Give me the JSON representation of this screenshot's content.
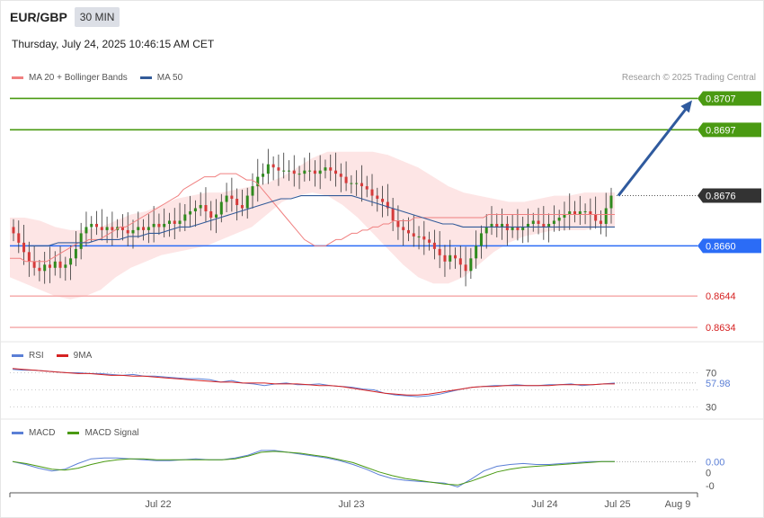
{
  "header": {
    "symbol": "EUR/GBP",
    "timeframe": "30 MIN",
    "datetime": "Thursday, July 24, 2025 10:46:15 AM CET",
    "credit": "Research © 2025 Trading Central"
  },
  "colors": {
    "ma20": "#f08080",
    "bollinger_fill": "#fde2e2",
    "ma50": "#335b99",
    "resistance": "#4a9a12",
    "support_primary": "#2b6cf6",
    "support_secondary": "#f4a5a5",
    "current": "#333333",
    "candle_up": "#2f8a1e",
    "candle_down": "#d43a3a",
    "rsi": "#5b7fd6",
    "rsi_ma": "#d62222",
    "macd": "#5b7fd6",
    "macd_signal": "#4a9a12",
    "arrow": "#2f5a9e"
  },
  "legends": {
    "main": [
      {
        "label": "MA 20 + Bollinger Bands",
        "color": "#f08080"
      },
      {
        "label": "MA 50",
        "color": "#335b99"
      }
    ],
    "rsi": [
      {
        "label": "RSI",
        "color": "#5b7fd6"
      },
      {
        "label": "9MA",
        "color": "#d62222"
      }
    ],
    "macd": [
      {
        "label": "MACD",
        "color": "#5b7fd6"
      },
      {
        "label": "MACD Signal",
        "color": "#4a9a12"
      }
    ]
  },
  "chart_data": [
    {
      "type": "candlestick",
      "symbol": "EUR/GBP",
      "interval": "30 MIN",
      "price_range": [
        0.863,
        0.8712
      ],
      "levels": [
        {
          "value": 0.8707,
          "label": "0.8707",
          "kind": "resistance"
        },
        {
          "value": 0.8697,
          "label": "0.8697",
          "kind": "resistance"
        },
        {
          "value": 0.8676,
          "label": "0.8676",
          "kind": "current"
        },
        {
          "value": 0.866,
          "label": "0.8660",
          "kind": "support-primary"
        },
        {
          "value": 0.8644,
          "label": "0.8644",
          "kind": "support-secondary"
        },
        {
          "value": 0.8634,
          "label": "0.8634",
          "kind": "support-secondary"
        }
      ],
      "projection": {
        "from": 0.8676,
        "to": 0.8707
      },
      "close": [
        0.8664,
        0.8661,
        0.8658,
        0.8655,
        0.8653,
        0.8652,
        0.8654,
        0.8653,
        0.8655,
        0.8653,
        0.8654,
        0.8656,
        0.8659,
        0.8664,
        0.8666,
        0.8667,
        0.8666,
        0.8665,
        0.8666,
        0.8665,
        0.8666,
        0.8665,
        0.8664,
        0.8665,
        0.8666,
        0.8665,
        0.8666,
        0.8667,
        0.8666,
        0.8667,
        0.8668,
        0.8667,
        0.8668,
        0.867,
        0.8671,
        0.8672,
        0.8673,
        0.8671,
        0.8669,
        0.867,
        0.8674,
        0.8676,
        0.8675,
        0.8673,
        0.8672,
        0.8676,
        0.8679,
        0.8682,
        0.8683,
        0.8686,
        0.8685,
        0.8684,
        0.8684,
        0.8684,
        0.8683,
        0.8683,
        0.8684,
        0.8684,
        0.8683,
        0.8684,
        0.8685,
        0.8684,
        0.8683,
        0.8682,
        0.868,
        0.868,
        0.868,
        0.8679,
        0.8678,
        0.8676,
        0.8675,
        0.8674,
        0.8672,
        0.8668,
        0.8666,
        0.8665,
        0.8664,
        0.8663,
        0.8663,
        0.8662,
        0.8661,
        0.8659,
        0.8657,
        0.8655,
        0.8657,
        0.8656,
        0.8654,
        0.8652,
        0.8656,
        0.866,
        0.8664,
        0.8666,
        0.8667,
        0.8666,
        0.8667,
        0.8665,
        0.8666,
        0.8665,
        0.8666,
        0.8667,
        0.8668,
        0.8667,
        0.8666,
        0.8667,
        0.8668,
        0.8669,
        0.867,
        0.8671,
        0.867,
        0.8671,
        0.8671,
        0.867,
        0.8668,
        0.8667,
        0.8672,
        0.8676
      ],
      "ma20": [
        0.8656,
        0.8656,
        0.8656,
        0.8655,
        0.8655,
        0.8655,
        0.8655,
        0.8655,
        0.8656,
        0.8657,
        0.8658,
        0.8659,
        0.866,
        0.8661,
        0.8661,
        0.8662,
        0.8662,
        0.8662,
        0.8663,
        0.8664,
        0.8665,
        0.8666,
        0.8666,
        0.8667,
        0.8668,
        0.8669,
        0.867,
        0.8671,
        0.8672,
        0.8673,
        0.8674,
        0.8675,
        0.8676,
        0.8678,
        0.8679,
        0.868,
        0.8681,
        0.8682,
        0.8682,
        0.8682,
        0.8683,
        0.8683,
        0.8683,
        0.8683,
        0.8682,
        0.8681,
        0.8681,
        0.868,
        0.8678,
        0.8676,
        0.8674,
        0.8672,
        0.867,
        0.8668,
        0.8666,
        0.8664,
        0.8662,
        0.8661,
        0.866,
        0.866,
        0.866,
        0.8661,
        0.8662,
        0.8662,
        0.8663,
        0.8664,
        0.8664,
        0.8665,
        0.8665,
        0.8666,
        0.8666,
        0.8667,
        0.8667,
        0.8668,
        0.8668,
        0.8668,
        0.8668,
        0.8669,
        0.8669,
        0.8669,
        0.8669,
        0.8669,
        0.8669,
        0.8669,
        0.8669,
        0.8669,
        0.8669,
        0.8669,
        0.8669,
        0.8669,
        0.8669,
        0.867,
        0.867,
        0.867,
        0.867,
        0.867,
        0.867,
        0.867,
        0.867,
        0.867,
        0.867,
        0.867,
        0.867,
        0.867,
        0.867,
        0.867,
        0.867,
        0.867,
        0.867,
        0.867,
        0.867,
        0.867,
        0.867,
        0.867,
        0.867,
        0.867
      ],
      "ma50": [
        0.866,
        0.866,
        0.866,
        0.8661,
        0.8661,
        0.8661,
        0.8661,
        0.8662,
        0.8662,
        0.8662,
        0.8663,
        0.8663,
        0.8664,
        0.8664,
        0.8665,
        0.8666,
        0.8666,
        0.8667,
        0.8668,
        0.8669,
        0.867,
        0.8671,
        0.8672,
        0.8673,
        0.8674,
        0.8675,
        0.8675,
        0.8676,
        0.8676,
        0.8676,
        0.8676,
        0.8676,
        0.8676,
        0.8675,
        0.8674,
        0.8673,
        0.8672,
        0.8671,
        0.867,
        0.8669,
        0.8668,
        0.8667,
        0.8667,
        0.8666,
        0.8666,
        0.8666,
        0.8666,
        0.8666,
        0.8666,
        0.8666,
        0.8666,
        0.8666,
        0.8666,
        0.8666,
        0.8666,
        0.8666,
        0.8666,
        0.8666,
        0.8666
      ],
      "bb_upper": [
        0.8669,
        0.8669,
        0.8668,
        0.8666,
        0.8665,
        0.8665,
        0.8666,
        0.8668,
        0.867,
        0.8671,
        0.8673,
        0.8675,
        0.8676,
        0.8677,
        0.8677,
        0.8678,
        0.8679,
        0.868,
        0.8682,
        0.8685,
        0.8688,
        0.869,
        0.869,
        0.869,
        0.869,
        0.8689,
        0.8687,
        0.8685,
        0.8682,
        0.8679,
        0.8677,
        0.8676,
        0.8675,
        0.8674,
        0.8674,
        0.8675,
        0.8676,
        0.8676,
        0.8677,
        0.8677,
        0.8677
      ],
      "bb_lower": [
        0.865,
        0.8648,
        0.8646,
        0.8644,
        0.8643,
        0.8644,
        0.8646,
        0.865,
        0.8653,
        0.8655,
        0.8657,
        0.8658,
        0.8659,
        0.866,
        0.8662,
        0.8664,
        0.8666,
        0.867,
        0.8674,
        0.8676,
        0.8677,
        0.8676,
        0.8673,
        0.8669,
        0.8664,
        0.8659,
        0.8654,
        0.865,
        0.8648,
        0.8648,
        0.865,
        0.8654,
        0.8658,
        0.8661,
        0.8663,
        0.8664,
        0.8665,
        0.8665,
        0.8665,
        0.8666,
        0.8666
      ]
    },
    {
      "type": "line",
      "name": "RSI",
      "ylim": [
        20,
        80
      ],
      "ticks": [
        70,
        30
      ],
      "current_label": "57.98",
      "series": [
        {
          "name": "RSI",
          "values": [
            74,
            73,
            73,
            72,
            71,
            70,
            70,
            69,
            69,
            68,
            67,
            68,
            66,
            66,
            65,
            64,
            63,
            63,
            62,
            59,
            61,
            58,
            57,
            55,
            57,
            58,
            56,
            56,
            57,
            55,
            54,
            53,
            51,
            50,
            46,
            44,
            43,
            42,
            43,
            45,
            48,
            51,
            53,
            54,
            55,
            55,
            56,
            55,
            55,
            56,
            56,
            57,
            55,
            56,
            57,
            58
          ]
        },
        {
          "name": "9MA",
          "values": [
            75,
            74,
            73,
            72,
            71,
            70,
            69,
            69,
            68,
            67,
            67,
            66,
            66,
            65,
            64,
            63,
            62,
            61,
            60,
            59,
            59,
            58,
            58,
            58,
            57,
            57,
            57,
            56,
            55,
            55,
            54,
            52,
            50,
            48,
            46,
            45,
            44,
            44,
            45,
            47,
            49,
            51,
            53,
            54,
            54,
            55,
            55,
            55,
            55,
            55,
            56,
            56,
            56,
            56,
            57,
            57
          ]
        }
      ]
    },
    {
      "type": "line",
      "name": "MACD",
      "ticks": [
        0
      ],
      "tick_labels": [
        "0",
        "-0"
      ],
      "current_label": "0.00",
      "series": [
        {
          "name": "MACD",
          "values": [
            4e-05,
            1e-05,
            -3e-05,
            -6e-05,
            -4e-05,
            2e-05,
            7e-05,
            8e-05,
            8e-05,
            7e-05,
            6e-05,
            5e-05,
            5e-05,
            6e-05,
            7e-05,
            6e-05,
            6e-05,
            8e-05,
            0.00011,
            0.00016,
            0.00016,
            0.00014,
            0.00012,
            0.0001,
            8e-05,
            5e-05,
            1e-05,
            -4e-05,
            -0.0001,
            -0.00014,
            -0.00016,
            -0.00017,
            -0.00018,
            -0.00019,
            -0.00023,
            -0.00015,
            -6e-05,
            -1e-05,
            1e-05,
            2e-05,
            1e-05,
            1e-05,
            2e-05,
            3e-05,
            4e-05,
            4e-05,
            4e-05
          ]
        },
        {
          "name": "MACD Signal",
          "values": [
            4e-05,
            2e-05,
            -1e-05,
            -4e-05,
            -5e-05,
            -3e-05,
            1e-05,
            4e-05,
            6e-05,
            7e-05,
            7e-05,
            6e-05,
            6e-05,
            6e-05,
            6e-05,
            6e-05,
            6e-05,
            7e-05,
            0.0001,
            0.00014,
            0.00015,
            0.00014,
            0.00013,
            0.00011,
            9e-05,
            6e-05,
            3e-05,
            -2e-05,
            -7e-05,
            -0.00011,
            -0.00014,
            -0.00016,
            -0.00018,
            -0.0002,
            -0.00021,
            -0.00017,
            -0.00012,
            -7e-05,
            -4e-05,
            -2e-05,
            -1e-05,
            0.0,
            1e-05,
            2e-05,
            3e-05,
            4e-05,
            4e-05
          ]
        }
      ]
    }
  ],
  "x_axis": {
    "labels": [
      "Jul 22",
      "Jul 23",
      "Jul 24",
      "Jul 25",
      "Aug 9"
    ]
  }
}
